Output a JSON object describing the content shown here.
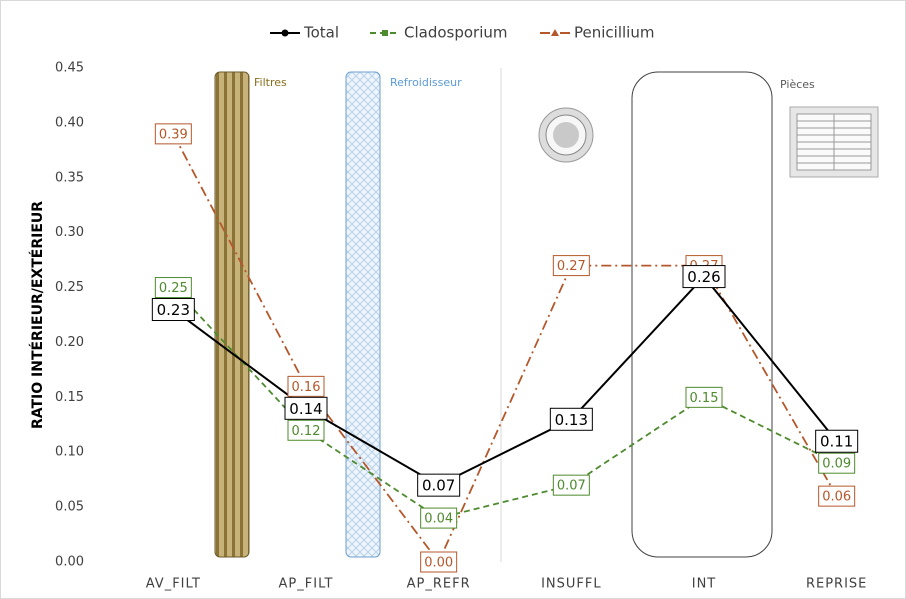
{
  "chart_data": {
    "type": "line",
    "ylabel": "RATIO INTÉRIEUR/EXTÉRIEUR",
    "annotations": [
      "Filtres",
      "Refroidisseur",
      "Pièces"
    ],
    "categories": [
      "AV_FILT",
      "AP_FILT",
      "AP_REFR",
      "INSUFFL",
      "INT",
      "REPRISE"
    ],
    "series": [
      {
        "name": "Total",
        "color": "#000000",
        "values": [
          0.23,
          0.14,
          0.07,
          0.13,
          0.26,
          0.11
        ],
        "value_labels": [
          "0.23",
          "0.14",
          "0.07",
          "0.13",
          "0.26",
          "0.11"
        ]
      },
      {
        "name": "Cladosporium",
        "color": "#4e8a2e",
        "values": [
          0.25,
          0.12,
          0.04,
          0.07,
          0.15,
          0.09
        ],
        "value_labels": [
          "0.25",
          "0.12",
          "0.04",
          "0.07",
          "0.15",
          "0.09"
        ]
      },
      {
        "name": "Penicillium",
        "color": "#b5572a",
        "values": [
          0.39,
          0.16,
          0.0,
          0.27,
          0.27,
          0.06
        ],
        "value_labels": [
          "0.39",
          "0.16",
          "0.00",
          "0.27",
          "0.27",
          "0.06"
        ]
      }
    ],
    "ylim": [
      0,
      0.45
    ],
    "yticks": [
      {
        "value": 0,
        "label": "0.00"
      },
      {
        "value": 0.05,
        "label": "0.05"
      },
      {
        "value": 0.1,
        "label": "0.10"
      },
      {
        "value": 0.15,
        "label": "0.15"
      },
      {
        "value": 0.2,
        "label": "0.20"
      },
      {
        "value": 0.25,
        "label": "0.25"
      },
      {
        "value": 0.3,
        "label": "0.30"
      },
      {
        "value": 0.35,
        "label": "0.35"
      },
      {
        "value": 0.4,
        "label": "0.40"
      },
      {
        "value": 0.45,
        "label": "0.45"
      }
    ],
    "legend": "top"
  }
}
